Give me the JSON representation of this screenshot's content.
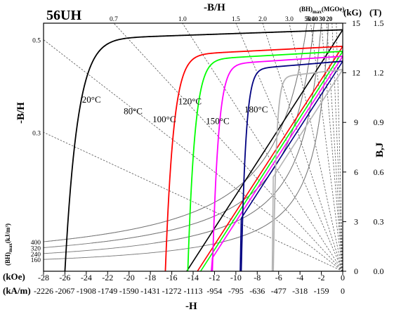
{
  "chart_data": {
    "type": "line",
    "title": "56UH",
    "xlabel": "-H",
    "x_unit_koe": "(kOe)",
    "x_unit_kam": "(kA/m)",
    "ylabel_left": "-B/H",
    "ylabel_right": "B,J",
    "top_label": "-B/H",
    "y_unit_kg": "(kG)",
    "y_unit_t": "(T)",
    "bh_max_label": "(BH)",
    "bh_max_sub": "max",
    "bh_max_unit": "(MGOe)",
    "bh_max_left_unit": "(kJ/m³)",
    "x_ticks_koe": [
      "-28",
      "-26",
      "-24",
      "-22",
      "-20",
      "-18",
      "-16",
      "-14",
      "-12",
      "-10",
      "-8",
      "-6",
      "-4",
      "-2",
      "0"
    ],
    "x_ticks_kam": [
      "-2226",
      "-2067",
      "-1908",
      "-1749",
      "-1590",
      "-1431",
      "-1272",
      "-1113",
      "-954",
      "-795",
      "-636",
      "-477",
      "-318",
      "-159",
      "0"
    ],
    "y_ticks_kg": [
      "0",
      "3",
      "6",
      "9",
      "12",
      "15"
    ],
    "y_ticks_t": [
      "0.0",
      "0.3",
      "0.6",
      "0.9",
      "1.2",
      "1.5"
    ],
    "xlim_koe": [
      -28,
      0
    ],
    "ylim_kg": [
      0,
      15
    ],
    "permeance_lines": [
      {
        "label": "0.7",
        "value": 0.7
      },
      {
        "label": "1.0",
        "value": 1.0
      },
      {
        "label": "1.5",
        "value": 1.5
      },
      {
        "label": "2.0",
        "value": 2.0
      },
      {
        "label": "3.0",
        "value": 3.0
      },
      {
        "label": "5.0",
        "value": 5.0
      },
      {
        "label": "0.5",
        "value": 0.5
      },
      {
        "label": "0.3",
        "value": 0.3
      },
      {
        "label": "",
        "value": 7.5
      },
      {
        "label": "",
        "value": 10.0
      },
      {
        "label": "",
        "value": 15.0
      },
      {
        "label": "",
        "value": 25.0
      }
    ],
    "bh_contours_mgoe": [
      {
        "label": "50",
        "value": 50
      },
      {
        "label": "40",
        "value": 40
      },
      {
        "label": "30",
        "value": 30
      },
      {
        "label": "20",
        "value": 20
      }
    ],
    "bh_contours_kj": [
      "400",
      "320",
      "240",
      "160"
    ],
    "series": [
      {
        "name": "20°C",
        "color": "#000000",
        "br_kg": 14.6,
        "hcj_koe": 26.0,
        "b_hc_koe": 14.6,
        "temp_label": "20°C",
        "label_at": [
          -24.4,
          10.2
        ]
      },
      {
        "name": "80°C",
        "color": "#ff0000",
        "br_kg": 13.6,
        "hcj_koe": 16.6,
        "b_hc_koe": 13.6,
        "temp_label": "80°C",
        "label_at": [
          -20.5,
          9.5
        ]
      },
      {
        "name": "100°C",
        "color": "#00ff00",
        "br_kg": 13.3,
        "hcj_koe": 14.5,
        "b_hc_koe": 13.3,
        "temp_label": "100°C",
        "label_at": [
          -17.8,
          9.0
        ]
      },
      {
        "name": "120°C",
        "color": "#ff00ff",
        "br_kg": 13.0,
        "hcj_koe": 12.2,
        "b_hc_koe": 12.2,
        "temp_label": "120°C",
        "label_at": [
          -15.4,
          10.1
        ]
      },
      {
        "name": "150°C",
        "color": "#000080",
        "br_kg": 12.7,
        "hcj_koe": 9.5,
        "b_hc_koe": 9.5,
        "temp_label": "150°C",
        "label_at": [
          -12.8,
          8.9
        ]
      },
      {
        "name": "180°C",
        "color": "#b4b4b4",
        "br_kg": 12.2,
        "hcj_koe": 6.5,
        "b_hc_koe": 6.5,
        "temp_label": "180°C",
        "label_at": [
          -9.2,
          9.6
        ]
      }
    ]
  }
}
